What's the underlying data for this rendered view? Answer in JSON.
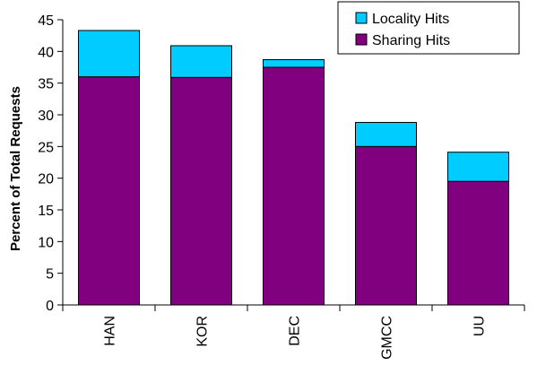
{
  "chart_data": {
    "type": "bar",
    "stacked": true,
    "categories": [
      "HAN",
      "KOR",
      "DEC",
      "GMCC",
      "UU"
    ],
    "series": [
      {
        "name": "Sharing Hits",
        "color": "#800080",
        "values": [
          36.0,
          35.9,
          37.5,
          25.0,
          19.5
        ]
      },
      {
        "name": "Locality Hits",
        "color": "#00CCFF",
        "values": [
          7.3,
          5.0,
          1.2,
          3.8,
          4.6
        ]
      }
    ],
    "title": "",
    "xlabel": "",
    "ylabel": "Percent of Total Requests",
    "ylim": [
      0,
      45
    ],
    "yticks": [
      0,
      5,
      10,
      15,
      20,
      25,
      30,
      35,
      40,
      45
    ],
    "grid": false,
    "legend_position": "top-right",
    "legend_order": [
      "Locality Hits",
      "Sharing Hits"
    ]
  }
}
